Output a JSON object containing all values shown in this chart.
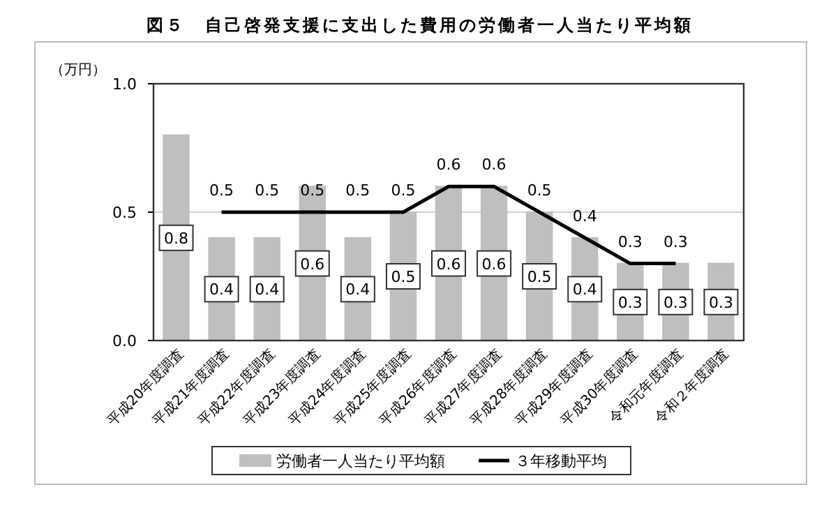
{
  "chart_data": {
    "type": "bar",
    "title": "図５　自己啓発支援に支出した費用の労働者一人当たり平均額",
    "ylabel": "（万円）",
    "categories": [
      "平成20年度調査",
      "平成21年度調査",
      "平成22年度調査",
      "平成23年度調査",
      "平成24年度調査",
      "平成25年度調査",
      "平成26年度調査",
      "平成27年度調査",
      "平成28年度調査",
      "平成29年度調査",
      "平成30年度調査",
      "令和元年度調査",
      "令和２年度調査"
    ],
    "series": [
      {
        "name": "労働者一人当たり平均額",
        "color": "#bfbfbf",
        "values": [
          0.8,
          0.4,
          0.4,
          0.6,
          0.4,
          0.5,
          0.6,
          0.6,
          0.5,
          0.4,
          0.3,
          0.3,
          0.3
        ]
      },
      {
        "name": "３年移動平均",
        "type": "line",
        "color": "#000000",
        "values": [
          null,
          0.5,
          0.5,
          0.5,
          0.5,
          0.5,
          0.6,
          0.6,
          0.5,
          0.4,
          0.3,
          0.3,
          null
        ]
      }
    ],
    "ylim": [
      0,
      1.0
    ],
    "yticks": [
      {
        "value": 0,
        "label": "0.0"
      },
      {
        "value": 0.5,
        "label": "0.5"
      },
      {
        "value": 1.0,
        "label": "1.0"
      }
    ],
    "grid": "y",
    "legend": "bottom",
    "data_labels": true,
    "marker": "none",
    "line_style": "solid"
  }
}
